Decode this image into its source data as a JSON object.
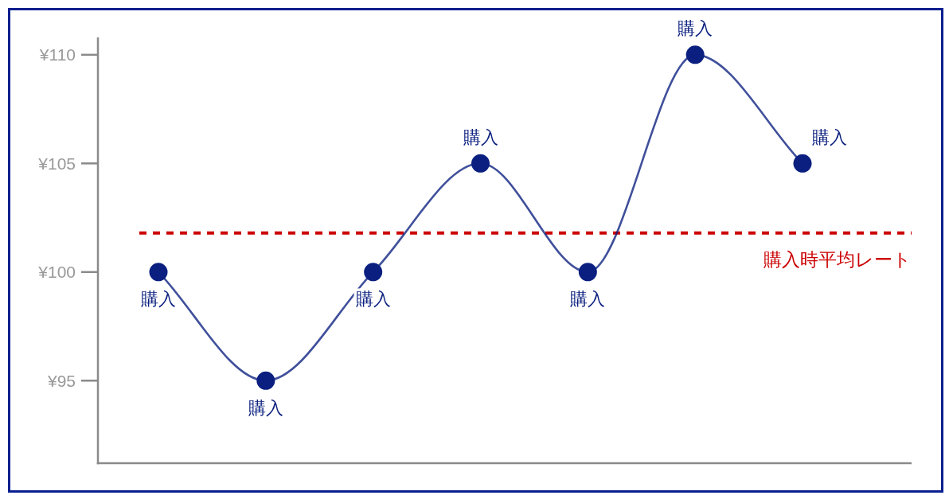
{
  "chart_data": {
    "type": "line",
    "categories": [
      null,
      null,
      null,
      null,
      null,
      null,
      null
    ],
    "series": [
      {
        "color": "#0a1f7f",
        "values": [
          100,
          95,
          100,
          105,
          100,
          110,
          105
        ],
        "value_labels": [
          "購入",
          "購入",
          "購入",
          "購入",
          "購入",
          "購入",
          "購入"
        ]
      }
    ],
    "marker": "circle",
    "grid": false,
    "ylim": [
      91.2,
      110.8
    ],
    "yticks": [
      {
        "value": 95,
        "label": "¥95"
      },
      {
        "value": 100,
        "label": "¥100"
      },
      {
        "value": 105,
        "label": "¥105"
      },
      {
        "value": 110,
        "label": "¥110"
      }
    ],
    "ref_lines": [
      {
        "axis": "y",
        "value": 101.8,
        "label": "購入時平均レート",
        "color": "#cc0000",
        "line_style": "dotted"
      }
    ]
  }
}
